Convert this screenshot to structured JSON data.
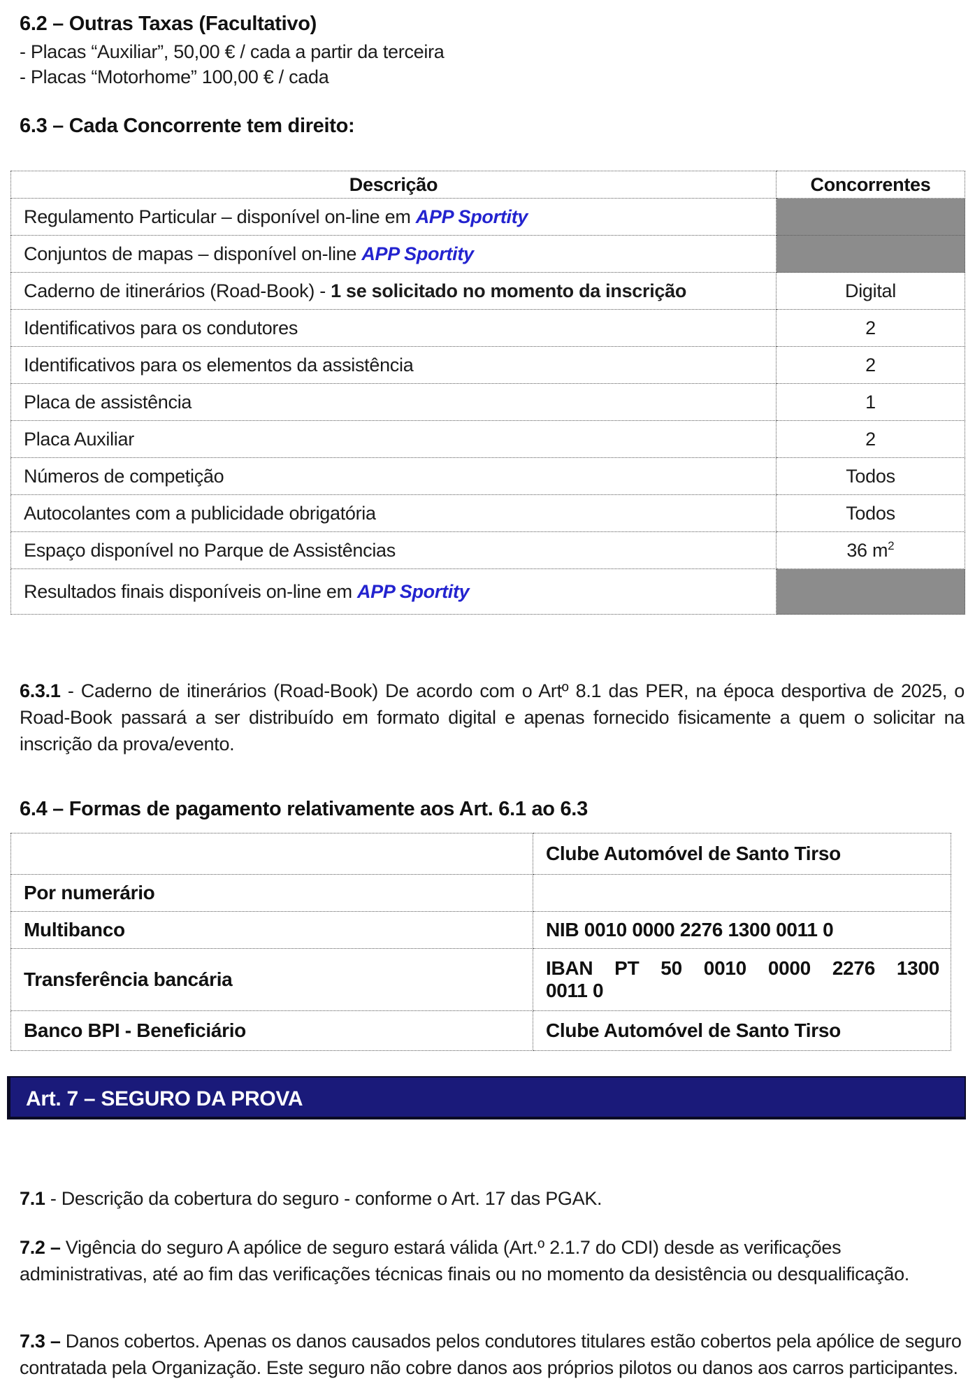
{
  "colors": {
    "accent_link": "#2323cf",
    "cell_gray": "#8c8c8c",
    "navy_bar": "#1a1a7a"
  },
  "section_6_2": {
    "heading": "6.2 – Outras Taxas (Facultativo)",
    "lines": [
      "- Placas “Auxiliar”, 50,00 € / cada a partir da terceira",
      "- Placas “Motorhome” 100,00 € / cada"
    ]
  },
  "section_6_3": {
    "heading": "6.3 – Cada Concorrente tem direito:",
    "table": {
      "col_descricao": "Descrição",
      "col_concorrentes": "Concorrentes",
      "rows": [
        {
          "pre": "Regulamento Particular – disponível on-line em ",
          "bold": "",
          "link": "APP Sportity",
          "value": "",
          "value_sup": "",
          "gray": true
        },
        {
          "pre": "Conjuntos de mapas – disponível on-line ",
          "bold": "",
          "link": "APP Sportity",
          "value": "",
          "value_sup": "",
          "gray": true
        },
        {
          "pre": "Caderno de itinerários (Road-Book) - ",
          "bold": "1 se solicitado no momento da inscrição",
          "link": "",
          "value": "Digital",
          "value_sup": "",
          "gray": false
        },
        {
          "pre": "Identificativos para os condutores",
          "bold": "",
          "link": "",
          "value": "2",
          "value_sup": "",
          "gray": false
        },
        {
          "pre": "Identificativos para os elementos da assistência",
          "bold": "",
          "link": "",
          "value": "2",
          "value_sup": "",
          "gray": false
        },
        {
          "pre": "Placa de assistência",
          "bold": "",
          "link": "",
          "value": "1",
          "value_sup": "",
          "gray": false
        },
        {
          "pre": "Placa Auxiliar",
          "bold": "",
          "link": "",
          "value": "2",
          "value_sup": "",
          "gray": false
        },
        {
          "pre": "Números de competição",
          "bold": "",
          "link": "",
          "value": "Todos",
          "value_sup": "",
          "gray": false
        },
        {
          "pre": "Autocolantes com a publicidade obrigatória",
          "bold": "",
          "link": "",
          "value": "Todos",
          "value_sup": "",
          "gray": false
        },
        {
          "pre": "Espaço disponível no Parque de Assistências",
          "bold": "",
          "link": "",
          "value": "36 m",
          "value_sup": "2",
          "gray": false
        },
        {
          "pre": "Resultados finais disponíveis on-line em ",
          "bold": "",
          "link": "APP Sportity",
          "value": "",
          "value_sup": "",
          "gray": true
        }
      ]
    }
  },
  "section_6_3_1": {
    "number": "6.3.1",
    "text": " - Caderno de itinerários (Road-Book) De acordo com o Artº 8.1 das PER, na época desportiva de 2025, o Road-Book passará a ser distribuído em formato digital e apenas fornecido fisicamente a quem o solicitar na inscrição da prova/evento."
  },
  "section_6_4": {
    "heading": "6.4 – Formas de pagamento relativamente aos Art. 6.1 ao 6.3",
    "table": {
      "rows": [
        {
          "label": "",
          "value": "Clube Automóvel de Santo Tirso"
        },
        {
          "label": "Por numerário",
          "value": ""
        },
        {
          "label": "Multibanco",
          "value": "NIB 0010 0000 2276 1300 0011 0"
        },
        {
          "label": "Transferência bancária",
          "value_line1": "IBAN PT 50 0010 0000 2276 1300",
          "value_line2": "0011 0"
        },
        {
          "label": "Banco BPI - Beneficiário",
          "value": "Clube Automóvel de Santo Tirso"
        }
      ]
    }
  },
  "art7": {
    "bar_title": "Art. 7 – SEGURO DA PROVA"
  },
  "section_7_1": {
    "number": "7.1",
    "text": " - Descrição da cobertura do seguro - conforme o Art. 17 das PGAK."
  },
  "section_7_2": {
    "number": "7.2 –",
    "text": " Vigência do seguro A apólice de seguro estará válida (Art.º 2.1.7 do CDI) desde as verificações administrativas, até ao fim das verificações técnicas finais ou no momento da desistência ou desqualificação."
  },
  "section_7_3": {
    "number": "7.3 –",
    "text": " Danos cobertos. Apenas os danos causados pelos condutores titulares estão cobertos pela apólice de seguro contratada pela Organização. Este seguro não cobre danos aos próprios pilotos ou danos aos carros participantes."
  }
}
